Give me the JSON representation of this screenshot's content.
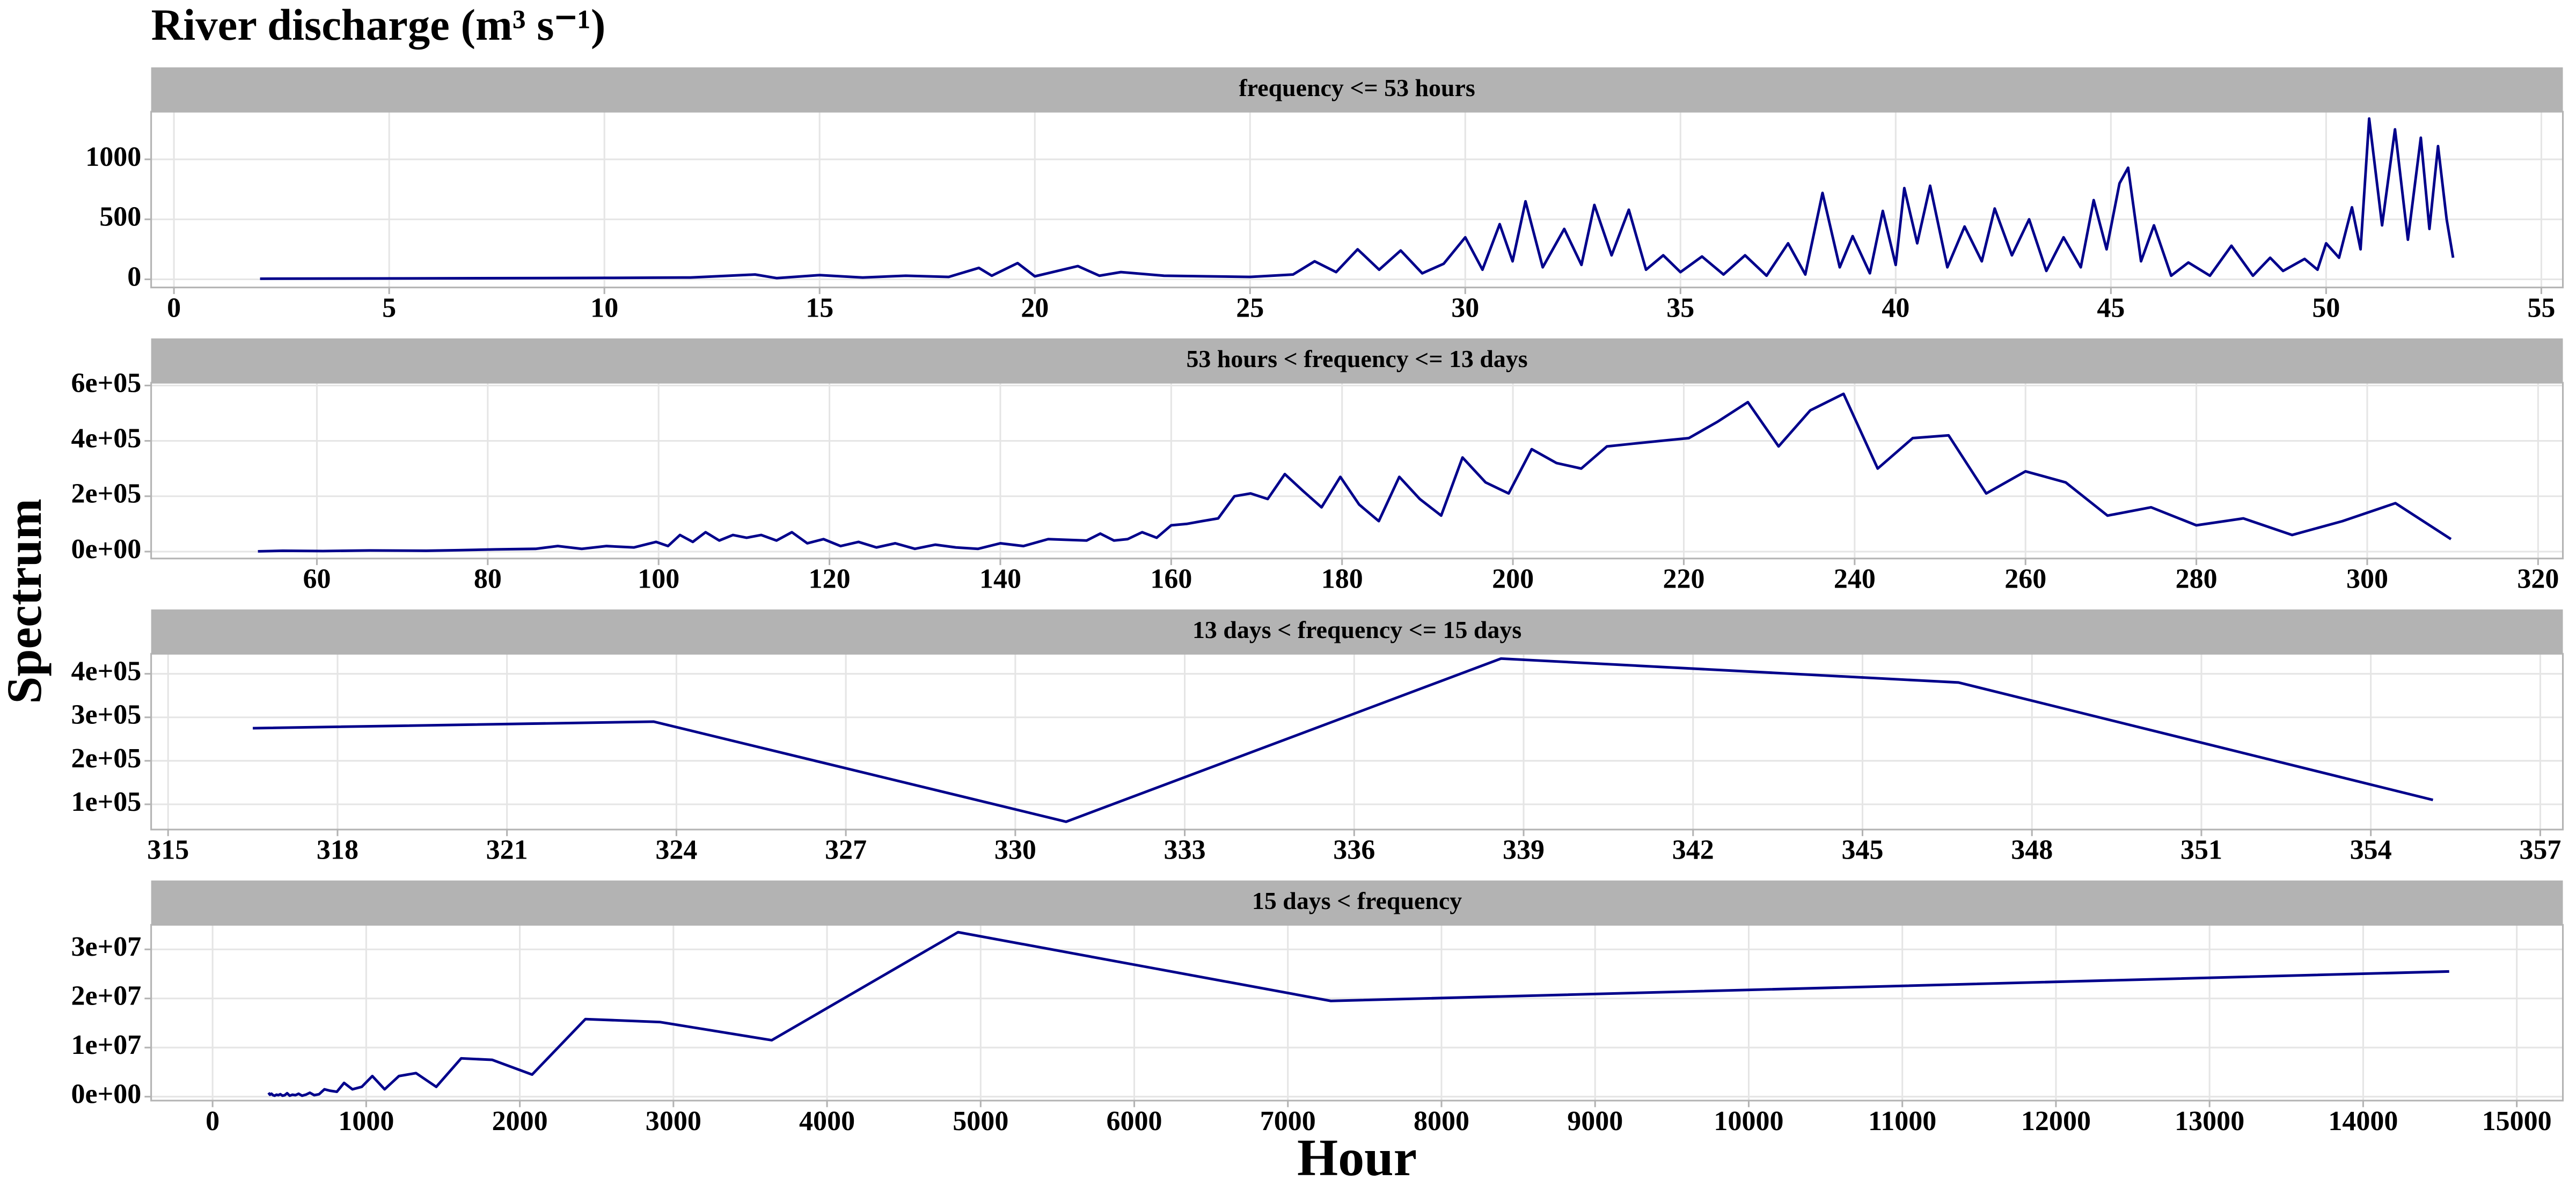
{
  "title": "River discharge (m³ s⁻¹)",
  "y_label": "Spectrum",
  "x_label": "Hour",
  "chart_data": [
    {
      "type": "line",
      "title": "frequency <= 53 hours",
      "color": "#00008b",
      "grid": true,
      "x": [
        2,
        6,
        10,
        12,
        13.5,
        14,
        15,
        16,
        17,
        18,
        18.7,
        19,
        19.6,
        20,
        21,
        21.5,
        22,
        23,
        24,
        25,
        26,
        26.5,
        27,
        27.5,
        28,
        28.5,
        29,
        29.5,
        30,
        30.4,
        30.8,
        31.1,
        31.4,
        31.8,
        32.3,
        32.7,
        33,
        33.4,
        33.8,
        34.2,
        34.6,
        35,
        35.5,
        36,
        36.5,
        37,
        37.5,
        37.9,
        38.3,
        38.7,
        39,
        39.4,
        39.7,
        40,
        40.2,
        40.5,
        40.8,
        41.2,
        41.6,
        42,
        42.3,
        42.7,
        43.1,
        43.5,
        43.9,
        44.3,
        44.6,
        44.9,
        45.2,
        45.4,
        45.7,
        46,
        46.4,
        46.8,
        47.3,
        47.8,
        48.3,
        48.7,
        49,
        49.5,
        49.8,
        50,
        50.3,
        50.6,
        50.8,
        51,
        51.3,
        51.6,
        51.9,
        52.2,
        52.4,
        52.6,
        52.8,
        52.95
      ],
      "values": [
        5,
        8,
        12,
        15,
        40,
        10,
        35,
        15,
        30,
        20,
        95,
        30,
        135,
        25,
        110,
        30,
        60,
        30,
        25,
        20,
        40,
        150,
        60,
        250,
        80,
        240,
        50,
        130,
        350,
        80,
        460,
        150,
        650,
        100,
        420,
        120,
        620,
        200,
        580,
        80,
        200,
        60,
        190,
        40,
        200,
        30,
        300,
        40,
        720,
        100,
        360,
        50,
        570,
        120,
        760,
        300,
        780,
        100,
        440,
        150,
        590,
        200,
        500,
        70,
        350,
        100,
        660,
        250,
        800,
        930,
        150,
        450,
        30,
        140,
        30,
        280,
        30,
        180,
        70,
        170,
        80,
        300,
        180,
        600,
        250,
        1340,
        450,
        1250,
        330,
        1180,
        420,
        1110,
        500,
        180
      ],
      "xlim": [
        -0.53,
        55.5
      ],
      "ylim": [
        -68,
        1397
      ],
      "xticks": [
        0,
        5,
        10,
        15,
        20,
        25,
        30,
        35,
        40,
        45,
        50,
        55
      ],
      "yticks": [
        0,
        500,
        1000
      ]
    },
    {
      "type": "line",
      "title": "53 hours < frequency <= 13 days",
      "color": "#00008b",
      "grid": true,
      "x": [
        53.1,
        56.0,
        60.7,
        66.2,
        72.8,
        76.6,
        80.9,
        85.6,
        88.2,
        91.0,
        93.9,
        97.1,
        99.7,
        101.1,
        102.5,
        104.0,
        105.5,
        107.1,
        108.7,
        110.3,
        112.0,
        113.8,
        115.6,
        117.4,
        119.3,
        121.3,
        123.4,
        125.5,
        127.7,
        130.0,
        132.4,
        134.8,
        137.4,
        140.0,
        142.7,
        145.6,
        150.1,
        151.7,
        153.3,
        154.9,
        156.6,
        158.3,
        160.0,
        161.8,
        163.6,
        165.5,
        167.4,
        169.3,
        171.3,
        173.3,
        175.4,
        177.6,
        179.8,
        182.0,
        184.3,
        186.7,
        189.1,
        191.6,
        194.1,
        196.8,
        199.5,
        202.2,
        205.1,
        208.0,
        211.0,
        214.1,
        217.3,
        220.6,
        224.0,
        227.5,
        231.1,
        234.8,
        238.7,
        242.7,
        246.8,
        251.0,
        255.4,
        260.0,
        264.7,
        269.6,
        274.7,
        280.0,
        285.5,
        291.2,
        297.1,
        303.3,
        309.8
      ],
      "values": [
        1000,
        3000,
        2000,
        4000,
        3000,
        5000,
        8000,
        10000,
        20000,
        10000,
        20000,
        15000,
        35000,
        20000,
        60000,
        35000,
        70000,
        40000,
        60000,
        50000,
        60000,
        40000,
        70000,
        30000,
        45000,
        20000,
        35000,
        15000,
        30000,
        10000,
        25000,
        15000,
        10000,
        30000,
        20000,
        45000,
        40000,
        65000,
        40000,
        45000,
        70000,
        50000,
        95000,
        100000,
        110000,
        120000,
        200000,
        210000,
        190000,
        280000,
        220000,
        160000,
        270000,
        170000,
        110000,
        270000,
        190000,
        130000,
        340000,
        250000,
        210000,
        370000,
        320000,
        300000,
        380000,
        390000,
        400000,
        410000,
        470000,
        540000,
        380000,
        510000,
        570000,
        300000,
        410000,
        420000,
        210000,
        290000,
        250000,
        130000,
        160000,
        95000,
        120000,
        60000,
        110000,
        175000,
        45000
      ],
      "xlim": [
        40.6,
        322.9
      ],
      "ylim": [
        -25000,
        610000
      ],
      "xticks": [
        60,
        80,
        100,
        120,
        140,
        160,
        180,
        200,
        220,
        240,
        260,
        280,
        300,
        320
      ],
      "yticks": [
        {
          "value": 0,
          "label": "0e+00"
        },
        {
          "value": 200000,
          "label": "2e+05"
        },
        {
          "value": 400000,
          "label": "4e+05"
        },
        {
          "value": 600000,
          "label": "6e+05"
        }
      ]
    },
    {
      "type": "line",
      "title": "13 days < frequency <= 15 days",
      "color": "#00008b",
      "grid": true,
      "x": [
        316.5,
        323.6,
        330.9,
        338.6,
        346.7,
        355.1
      ],
      "values": [
        275000,
        290000,
        60000,
        435000,
        380000,
        110000
      ],
      "xlim": [
        314.7,
        357.4
      ],
      "ylim": [
        42000,
        446000
      ],
      "xticks": [
        315,
        318,
        321,
        324,
        327,
        330,
        333,
        336,
        339,
        342,
        345,
        348,
        351,
        354,
        357
      ],
      "yticks": [
        {
          "value": 100000,
          "label": "1e+05"
        },
        {
          "value": 200000,
          "label": "2e+05"
        },
        {
          "value": 300000,
          "label": "3e+05"
        },
        {
          "value": 400000,
          "label": "4e+05"
        }
      ]
    },
    {
      "type": "line",
      "title": "15 days < frequency",
      "color": "#00008b",
      "grid": true,
      "x": [
        364.0,
        373.3,
        383.2,
        393.5,
        404.4,
        416.0,
        428.2,
        441.2,
        455.0,
        469.7,
        485.3,
        502.1,
        520.0,
        539.3,
        560.0,
        582.4,
        606.7,
        633.0,
        661.8,
        693.3,
        728,
        766,
        809,
        856,
        910,
        971,
        1040,
        1120,
        1213,
        1324,
        1456,
        1618,
        1820,
        2080,
        2427,
        2912,
        3640,
        4853,
        7280,
        14560
      ],
      "values": [
        800000,
        400000,
        600000,
        300000,
        200000,
        400000,
        300000,
        500000,
        200000,
        300000,
        700000,
        200000,
        400000,
        300000,
        600000,
        200000,
        400000,
        800000,
        300000,
        500000,
        1500000,
        1200000,
        1000000,
        2800000,
        1500000,
        2000000,
        4200000,
        1500000,
        4200000,
        4800000,
        2000000,
        7800000,
        7500000,
        4500000,
        15800000,
        15200000,
        11500000,
        33500000,
        19500000,
        25500000
      ],
      "xlim": [
        -400,
        15300
      ],
      "ylim": [
        -800000,
        35000000
      ],
      "xticks": [
        0,
        1000,
        2000,
        3000,
        4000,
        5000,
        6000,
        7000,
        8000,
        9000,
        10000,
        11000,
        12000,
        13000,
        14000,
        15000
      ],
      "yticks": [
        {
          "value": 0,
          "label": "0e+00"
        },
        {
          "value": 10000000,
          "label": "1e+07"
        },
        {
          "value": 20000000,
          "label": "2e+07"
        },
        {
          "value": 30000000,
          "label": "3e+07"
        }
      ]
    }
  ]
}
